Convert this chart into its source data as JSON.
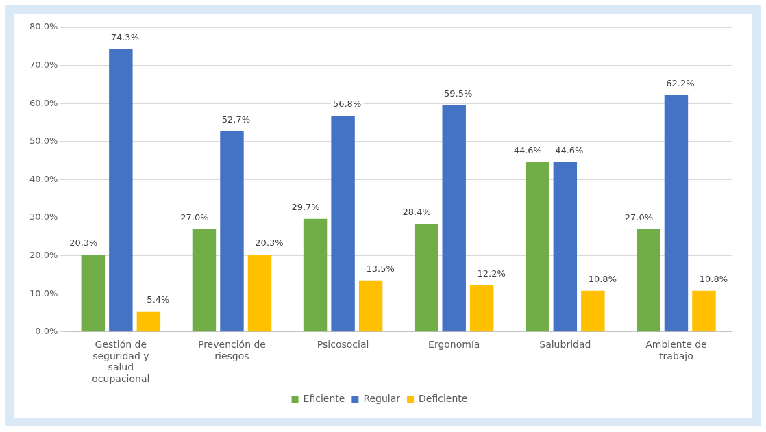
{
  "chart_data": {
    "type": "bar",
    "categories": [
      "Gestión de seguridad y salud ocupacional",
      "Prevención de riesgos",
      "Psicosocial",
      "Ergonomía",
      "Salubridad",
      "Ambiente de trabajo"
    ],
    "series": [
      {
        "name": "Eficiente",
        "color": "#70ad47",
        "values": [
          20.3,
          27.0,
          29.7,
          28.4,
          44.6,
          27.0
        ],
        "value_labels": [
          "20.3%",
          "27.0%",
          "29.7%",
          "28.4%",
          "44.6%",
          "27.0%"
        ]
      },
      {
        "name": "Regular",
        "color": "#4472c4",
        "values": [
          74.3,
          52.7,
          56.8,
          59.5,
          44.6,
          62.2
        ],
        "value_labels": [
          "74.3%",
          "52.7%",
          "56.8%",
          "59.5%",
          "44.6%",
          "62.2%"
        ]
      },
      {
        "name": "Deficiente",
        "color": "#ffc000",
        "values": [
          5.4,
          20.3,
          13.5,
          12.2,
          10.8,
          10.8
        ],
        "value_labels": [
          "5.4%",
          "20.3%",
          "13.5%",
          "12.2%",
          "10.8%",
          "10.8%"
        ]
      }
    ],
    "ylim": [
      0,
      80
    ],
    "yticks": [
      {
        "value": 0,
        "label": "0.0%"
      },
      {
        "value": 10,
        "label": "10.0%"
      },
      {
        "value": 20,
        "label": "20.0%"
      },
      {
        "value": 30,
        "label": "30.0%"
      },
      {
        "value": 40,
        "label": "40.0%"
      },
      {
        "value": 50,
        "label": "50.0%"
      },
      {
        "value": 60,
        "label": "60.0%"
      },
      {
        "value": 70,
        "label": "70.0%"
      },
      {
        "value": 80,
        "label": "80.0%"
      }
    ],
    "grid": "y",
    "legend": "bottom"
  }
}
